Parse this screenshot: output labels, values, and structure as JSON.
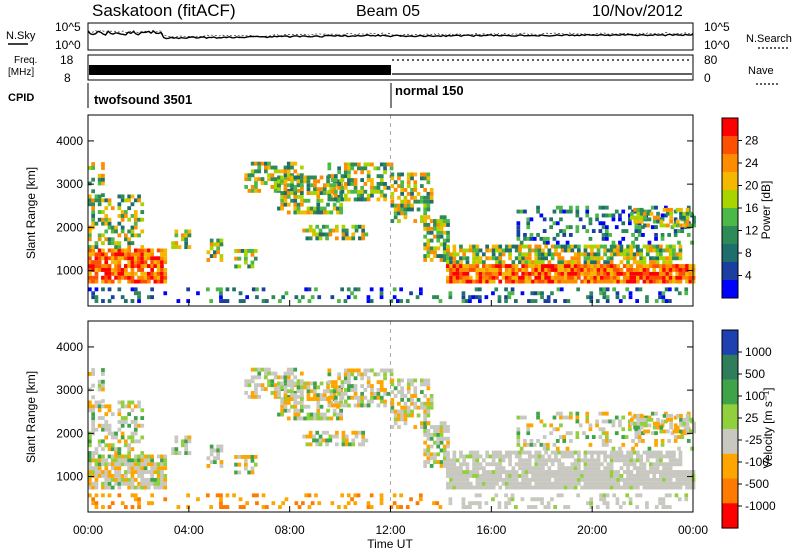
{
  "header": {
    "station": "Saskatoon (fitACF)",
    "beam": "Beam 05",
    "date": "10/Nov/2012"
  },
  "noise_panel": {
    "left_label": "N.Sky",
    "right_label": "N.Search",
    "tick_top": "10^5",
    "tick_bottom": "10^0",
    "tick_top_right": "10^5",
    "tick_bottom_right": "10^0"
  },
  "freq_panel": {
    "left_label_1": "Freq.",
    "left_label_2": "[MHz]",
    "right_label": "Nave",
    "tick_top": "18",
    "tick_bottom": "8",
    "tick_top_right": "80",
    "tick_bottom_right": "0"
  },
  "cpid": {
    "label": "CPID",
    "modes": [
      {
        "name": "twofsound 3501"
      },
      {
        "name": "normal 150"
      }
    ]
  },
  "power_panel": {
    "ylabel": "Slant Range [km]",
    "colorbar_label": "Power [dB]",
    "yticks": [
      "4000",
      "3000",
      "2000",
      "1000"
    ],
    "colorbar_ticks": [
      "28",
      "24",
      "20",
      "16",
      "12",
      "8",
      "4"
    ],
    "colors": [
      "#ff0000",
      "#ff4f00",
      "#ff8c00",
      "#f5b800",
      "#a8d400",
      "#4cb848",
      "#2e8b57",
      "#1f6e6e",
      "#1a3fa0",
      "#0000ff"
    ]
  },
  "velocity_panel": {
    "ylabel": "Slant Range [km]",
    "colorbar_label": "Velocity [m s⁻¹]",
    "yticks": [
      "4000",
      "3000",
      "2000",
      "1000"
    ],
    "colorbar_ticks": [
      "1000",
      "500",
      "100",
      "25",
      "-25",
      "-100",
      "-500",
      "-1000"
    ],
    "colors": [
      "#1e40b0",
      "#2f7d5a",
      "#3fa34a",
      "#8fd03c",
      "#c8c8c0",
      "#ffa500",
      "#ff7a00",
      "#ff0000"
    ]
  },
  "xaxis": {
    "label": "Time UT",
    "ticks": [
      "00:00",
      "04:00",
      "08:00",
      "12:00",
      "16:00",
      "20:00",
      "00:00"
    ]
  },
  "chart_data": {
    "type": "heatmap",
    "title": "Saskatoon (fitACF) Beam 05 10/Nov/2012",
    "xlabel": "Time UT",
    "ylabel": "Slant Range [km]",
    "x_range_hours": [
      0,
      24
    ],
    "y_range_km": [
      180,
      4600
    ],
    "series": [
      {
        "name": "Power [dB]",
        "colorbar": [
          4,
          8,
          12,
          16,
          20,
          24,
          28
        ]
      },
      {
        "name": "Velocity [m s-1]",
        "colorbar": [
          1000,
          500,
          100,
          25,
          -25,
          -100,
          -500,
          -1000
        ]
      }
    ],
    "cpid": [
      {
        "mode": "twofsound 3501",
        "start_hour": 0,
        "end_hour": 12
      },
      {
        "mode": "normal 150",
        "start_hour": 12,
        "end_hour": 24
      }
    ]
  }
}
